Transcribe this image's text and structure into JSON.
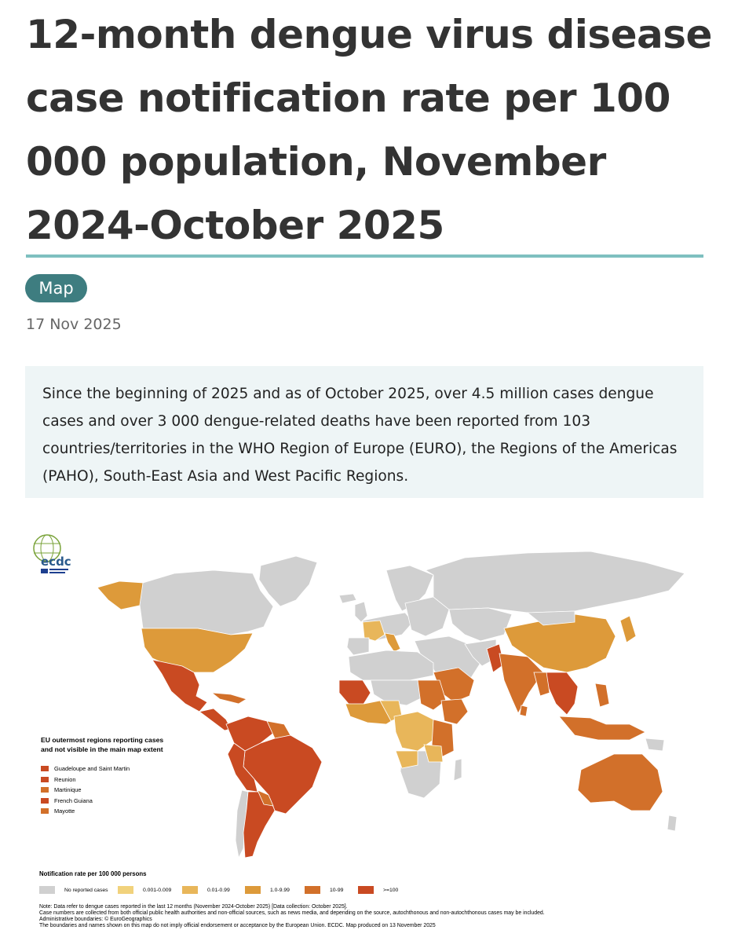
{
  "page": {
    "title": "12-month dengue virus disease case notification rate per 100 000 population, November 2024-October 2025",
    "tag": "Map",
    "date": "17 Nov 2025",
    "summary": "Since the beginning of 2025 and as of October 2025, over 4.5 million cases dengue cases and over 3 000 dengue-related deaths have been reported from 103 countries/territories in the WHO Region of Europe (EURO), the Regions of the Americas (PAHO), South-East Asia and West Pacific Regions."
  },
  "map": {
    "logo_text": "ecdc",
    "inset_title": "EU outermost regions reporting cases and not visible in the main map extent",
    "outermost_regions": [
      {
        "name": "Guadeloupe and Saint Martin",
        "color": "#c94a22"
      },
      {
        "name": "Reunion",
        "color": "#c94a22"
      },
      {
        "name": "Martinique",
        "color": "#d2702a"
      },
      {
        "name": "French Guiana",
        "color": "#c94a22"
      },
      {
        "name": "Mayotte",
        "color": "#d2702a"
      }
    ],
    "legend_title": "Notification rate per 100 000 persons",
    "legend": [
      {
        "label": "No reported cases",
        "color": "#d0d0d0"
      },
      {
        "label": "0.001-0.009",
        "color": "#f1d27c"
      },
      {
        "label": "0.01-0.99",
        "color": "#e8b65a"
      },
      {
        "label": "1.0-9.99",
        "color": "#dd9a3a"
      },
      {
        "label": "10-99",
        "color": "#d2702a"
      },
      {
        "label": ">=100",
        "color": "#c94a22"
      }
    ],
    "notes": [
      "Note: Data refer to dengue cases reported in the last 12 months (November 2024-October 2025) [Data collection: October 2025].",
      "Case numbers are collected from both official public health authorities and non-official sources, such as news media, and depending on the source, autochthonous and non-autochthonous cases may be included.",
      "Administrative boundaries: © EuroGeographics",
      "The boundaries and names shown on this map do not imply official endorsement or acceptance by the European Union. ECDC. Map produced on 13 November 2025"
    ]
  }
}
